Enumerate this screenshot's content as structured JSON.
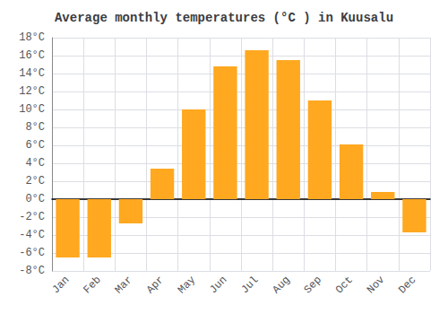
{
  "chart_data": {
    "type": "bar",
    "title": "Average monthly temperatures (°C ) in Kuusalu",
    "categories": [
      "Jan",
      "Feb",
      "Mar",
      "Apr",
      "May",
      "Jun",
      "Jul",
      "Aug",
      "Sep",
      "Oct",
      "Nov",
      "Dec"
    ],
    "values": [
      -6.5,
      -6.5,
      -2.7,
      3.4,
      10.0,
      14.8,
      16.6,
      15.5,
      11.0,
      6.1,
      0.8,
      -3.7
    ],
    "color": "#FFA820",
    "ylim": [
      -8,
      18
    ],
    "yticks": [
      {
        "value": -8,
        "label": "-8°C"
      },
      {
        "value": -6,
        "label": "-6°C"
      },
      {
        "value": -4,
        "label": "-4°C"
      },
      {
        "value": -2,
        "label": "-2°C"
      },
      {
        "value": 0,
        "label": "0°C"
      },
      {
        "value": 2,
        "label": "2°C"
      },
      {
        "value": 4,
        "label": "4°C"
      },
      {
        "value": 6,
        "label": "6°C"
      },
      {
        "value": 8,
        "label": "8°C"
      },
      {
        "value": 10,
        "label": "10°C"
      },
      {
        "value": 12,
        "label": "12°C"
      },
      {
        "value": 14,
        "label": "14°C"
      },
      {
        "value": 16,
        "label": "16°C"
      },
      {
        "value": 18,
        "label": "18°C"
      }
    ],
    "grid": true
  }
}
